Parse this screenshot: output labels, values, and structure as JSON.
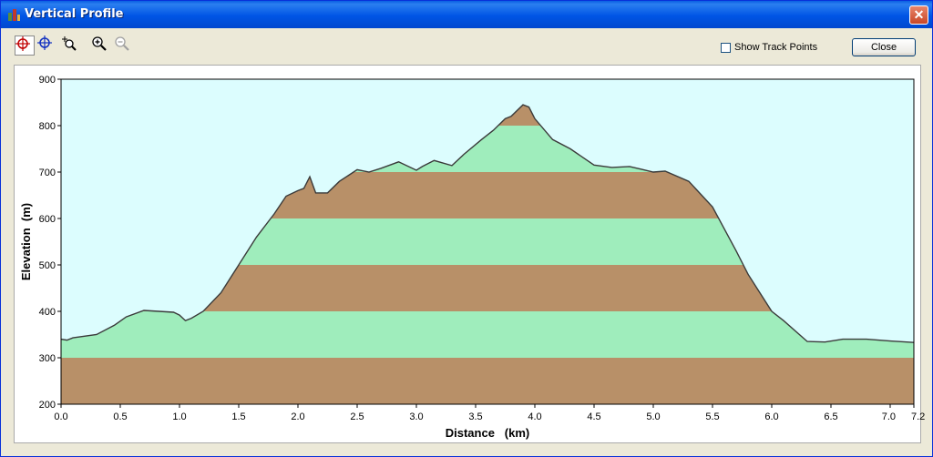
{
  "window": {
    "title": "Vertical Profile"
  },
  "toolbar": {
    "tools": [
      "crosshair-red-icon",
      "crosshair-blue-icon",
      "zoom-box-icon",
      "zoom-in-icon",
      "zoom-out-icon"
    ],
    "show_track_points_label": "Show Track Points",
    "show_track_points_checked": false,
    "close_label": "Close"
  },
  "colors": {
    "band_brown": "#B89068",
    "band_green": "#9FEDBC",
    "sky": "#DCFDFE",
    "profile_line": "#3A3A3A"
  },
  "chart_data": {
    "type": "area",
    "xlabel": "Distance   (km)",
    "ylabel": "Elevation  (m)",
    "xlim": [
      0.0,
      7.2
    ],
    "ylim": [
      200,
      900
    ],
    "x_ticks": [
      "0.0",
      "0.5",
      "1.0",
      "1.5",
      "2.0",
      "2.5",
      "3.0",
      "3.5",
      "4.0",
      "4.5",
      "5.0",
      "5.5",
      "6.0",
      "6.5",
      "7.0",
      "7.2"
    ],
    "x_tick_values": [
      0.0,
      0.5,
      1.0,
      1.5,
      2.0,
      2.5,
      3.0,
      3.5,
      4.0,
      4.5,
      5.0,
      5.5,
      6.0,
      6.5,
      7.0,
      7.2
    ],
    "y_ticks": [
      "200",
      "300",
      "400",
      "500",
      "600",
      "700",
      "800",
      "900"
    ],
    "y_tick_values": [
      200,
      300,
      400,
      500,
      600,
      700,
      800,
      900
    ],
    "band_step": 100,
    "series": [
      {
        "x": [
          0.0,
          0.05,
          0.1,
          0.3,
          0.45,
          0.55,
          0.7,
          0.95,
          1.0,
          1.05,
          1.1,
          1.2,
          1.35,
          1.5,
          1.65,
          1.8,
          1.9,
          2.0,
          2.05,
          2.1,
          2.15,
          2.25,
          2.35,
          2.5,
          2.6,
          2.7,
          2.85,
          3.0,
          3.05,
          3.15,
          3.3,
          3.4,
          3.55,
          3.65,
          3.75,
          3.8,
          3.9,
          3.95,
          4.0,
          4.15,
          4.3,
          4.5,
          4.65,
          4.8,
          4.9,
          5.0,
          5.1,
          5.3,
          5.5,
          5.7,
          5.8,
          5.9,
          6.0,
          6.1,
          6.3,
          6.45,
          6.6,
          6.8,
          7.0,
          7.2
        ],
        "y": [
          340,
          338,
          343,
          350,
          370,
          388,
          402,
          398,
          392,
          380,
          385,
          400,
          440,
          500,
          560,
          610,
          648,
          660,
          665,
          690,
          655,
          655,
          680,
          705,
          700,
          708,
          722,
          704,
          712,
          725,
          714,
          738,
          770,
          790,
          815,
          820,
          845,
          840,
          815,
          770,
          750,
          715,
          710,
          712,
          706,
          700,
          702,
          680,
          625,
          530,
          480,
          440,
          400,
          380,
          335,
          334,
          340,
          340,
          336,
          333
        ]
      }
    ]
  }
}
